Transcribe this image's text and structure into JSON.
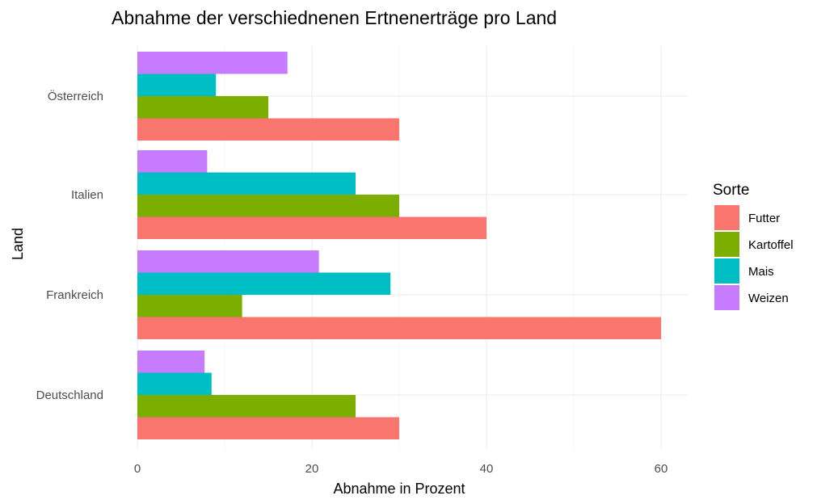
{
  "chart_data": {
    "type": "bar",
    "orientation": "horizontal",
    "title": "Abnahme der verschiednenen Ertnenerträge pro Land",
    "xlabel": "Abnahme in Prozent",
    "ylabel": "Land",
    "xlim": [
      0,
      63
    ],
    "x_ticks": [
      "0",
      "20",
      "40",
      "60"
    ],
    "grid": true,
    "legend_title": "Sorte",
    "legend_position": "right",
    "categories": [
      "Deutschland",
      "Frankreich",
      "Italien",
      "Österreich"
    ],
    "series": [
      {
        "name": "Futter",
        "color": "#F8766D",
        "values": [
          30,
          60,
          40,
          30
        ]
      },
      {
        "name": "Kartoffel",
        "color": "#7CAE00",
        "values": [
          25,
          12,
          30,
          15
        ]
      },
      {
        "name": "Mais",
        "color": "#00BFC4",
        "values": [
          8.5,
          29,
          25,
          9
        ]
      },
      {
        "name": "Weizen",
        "color": "#C77CFF",
        "values": [
          7.7,
          20.8,
          8,
          17.2
        ]
      }
    ]
  }
}
